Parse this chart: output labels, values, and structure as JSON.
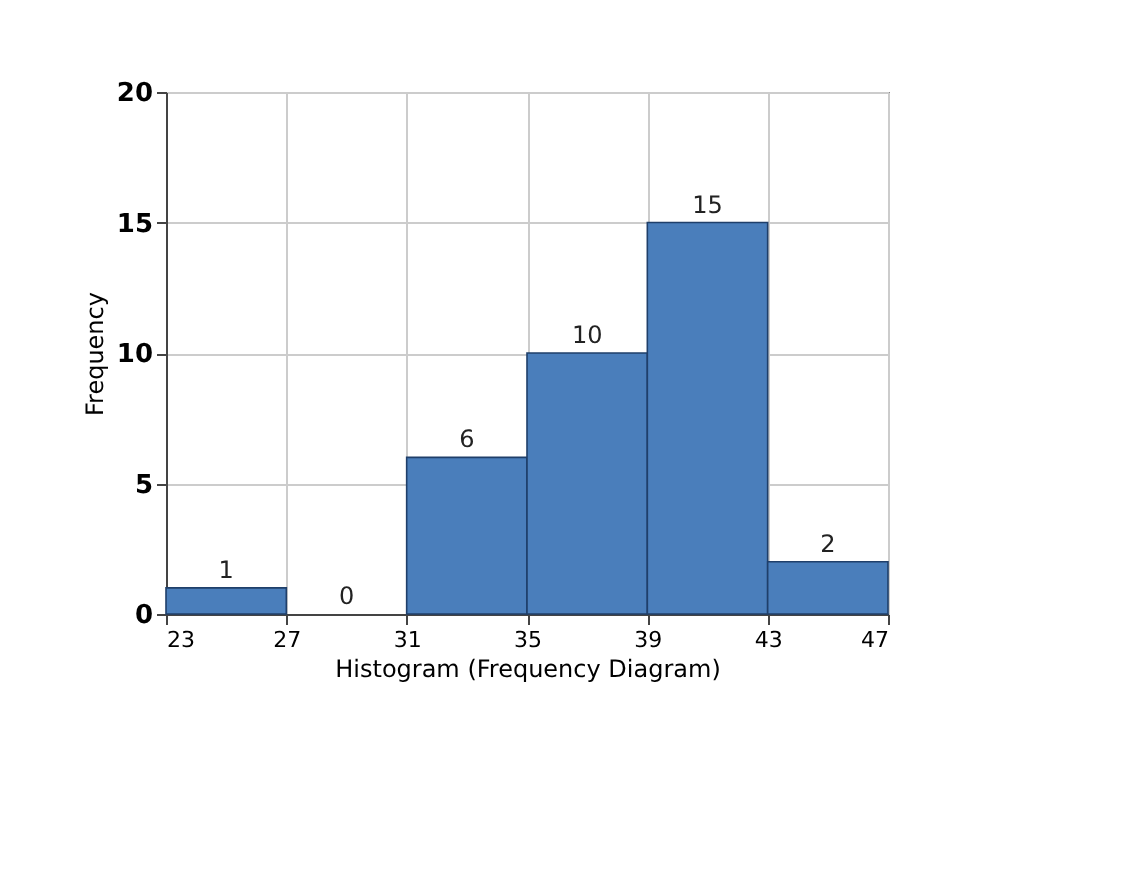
{
  "chart_data": {
    "type": "histogram",
    "xlabel": "Histogram (Frequency Diagram)",
    "ylabel": "Frequency",
    "bins": [
      23,
      27,
      31,
      35,
      39,
      43,
      47
    ],
    "values": [
      1,
      0,
      6,
      10,
      15,
      2
    ],
    "color": "#4a7ebb",
    "xlim": [
      23,
      47
    ],
    "xticks": [
      23,
      27,
      31,
      35,
      39,
      43,
      47
    ],
    "ylim": [
      0,
      20
    ],
    "yticks": [
      0,
      5,
      10,
      15,
      20
    ],
    "grid": true,
    "data_labels": true
  }
}
